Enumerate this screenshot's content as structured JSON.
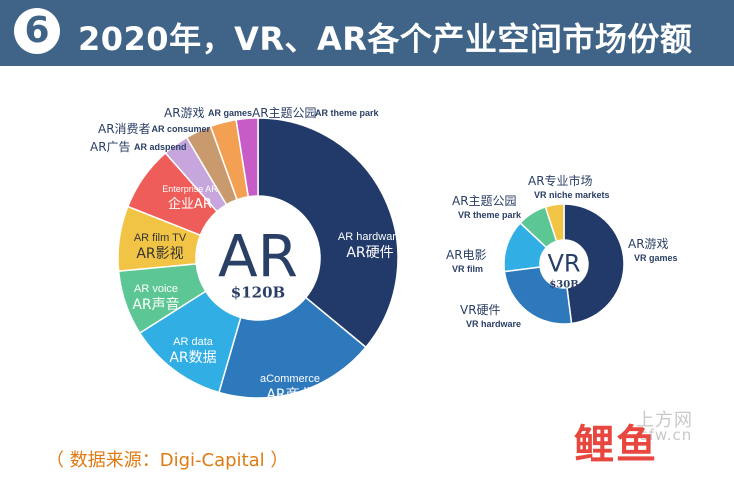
{
  "header": {
    "badge": "6",
    "title": "2020年，VR、AR各个产业空间市场份额"
  },
  "source": "（ 数据来源：Digi-Capital ）",
  "watermarks": {
    "site": "上方网",
    "site_url": "sfw.cn",
    "brand": "鲤鱼"
  },
  "chart_data": [
    {
      "type": "pie",
      "donut": true,
      "center_label": "AR",
      "center_sublabel": "$120B",
      "slices": [
        {
          "label_en": "AR hardware",
          "label_zh": "AR硬件",
          "value": 36.0,
          "color": "#213a69"
        },
        {
          "label_en": "aCommerce",
          "label_zh": "AR商业",
          "value": 18.5,
          "color": "#2e78bc"
        },
        {
          "label_en": "AR data",
          "label_zh": "AR数据",
          "value": 11.5,
          "color": "#31aee3"
        },
        {
          "label_en": "AR voice",
          "label_zh": "AR声音",
          "value": 7.5,
          "color": "#5cc794"
        },
        {
          "label_en": "AR film TV",
          "label_zh": "AR影视",
          "value": 7.5,
          "color": "#f2c445"
        },
        {
          "label_en": "Enterprise AR",
          "label_zh": "企业AR",
          "value": 7.5,
          "color": "#ee5d5a"
        },
        {
          "label_en": "AR adspend",
          "label_zh": "AR广告",
          "value": 3.0,
          "color": "#c6a6dc"
        },
        {
          "label_en": "AR consumer",
          "label_zh": "AR消费者",
          "value": 3.0,
          "color": "#c99a6e"
        },
        {
          "label_en": "AR games",
          "label_zh": "AR游戏",
          "value": 3.0,
          "color": "#f3a052"
        },
        {
          "label_en": "AR theme park",
          "label_zh": "AR主题公园",
          "value": 2.5,
          "color": "#c75cc6"
        }
      ]
    },
    {
      "type": "pie",
      "donut": true,
      "center_label": "VR",
      "center_sublabel": "$30B",
      "slices": [
        {
          "label_en": "VR games",
          "label_zh": "AR游戏",
          "value": 48.0,
          "color": "#213a69"
        },
        {
          "label_en": "VR hardware",
          "label_zh": "VR硬件",
          "value": 25.0,
          "color": "#2e78bc"
        },
        {
          "label_en": "VR film",
          "label_zh": "AR电影",
          "value": 14.0,
          "color": "#31aee3"
        },
        {
          "label_en": "VR theme park",
          "label_zh": "AR主题公园",
          "value": 8.0,
          "color": "#5cc794"
        },
        {
          "label_en": "VR niche markets",
          "label_zh": "AR专业市场",
          "value": 5.0,
          "color": "#f2c445"
        }
      ]
    }
  ]
}
